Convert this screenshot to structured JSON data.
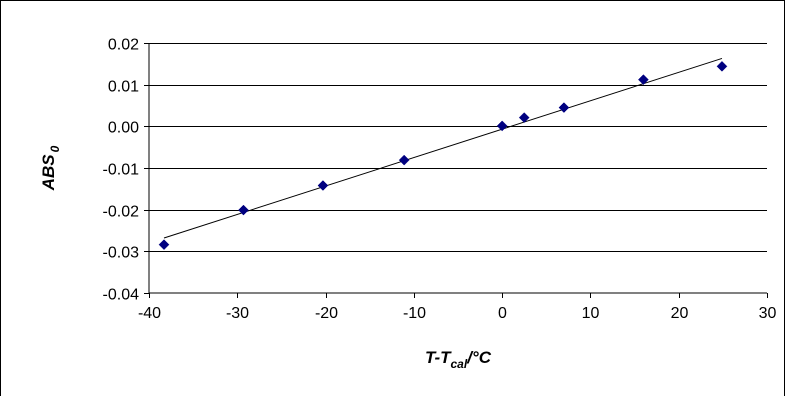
{
  "chart_data": {
    "type": "scatter",
    "xlabel": {
      "main": "T-T",
      "sub": "cal",
      "unit": "/°C"
    },
    "ylabel": {
      "main": "ABS",
      "sub": "0"
    },
    "xlim": [
      -40,
      30
    ],
    "ylim": [
      -0.04,
      0.02
    ],
    "x_ticks": [
      "-40",
      "-30",
      "-20",
      "-10",
      "0",
      "10",
      "20",
      "30"
    ],
    "y_ticks": [
      "0.02",
      "0.01",
      "0.00",
      "-0.01",
      "-0.02",
      "-0.03",
      "-0.04"
    ],
    "grid": "horizontal",
    "legend": "none",
    "points": [
      {
        "x": -38.3,
        "y": -0.0284
      },
      {
        "x": -29.3,
        "y": -0.0201
      },
      {
        "x": -20.3,
        "y": -0.0142
      },
      {
        "x": -11.1,
        "y": -0.0081
      },
      {
        "x": 0.0,
        "y": 0.0001
      },
      {
        "x": 2.5,
        "y": 0.0021
      },
      {
        "x": 7.0,
        "y": 0.0045
      },
      {
        "x": 16.0,
        "y": 0.0112
      },
      {
        "x": 24.9,
        "y": 0.0144
      }
    ],
    "trendline": {
      "x": [
        -38.3,
        24.9
      ],
      "y": [
        -0.0268,
        0.0163
      ]
    },
    "marker_color": "#000080",
    "line_color": "#000000"
  }
}
